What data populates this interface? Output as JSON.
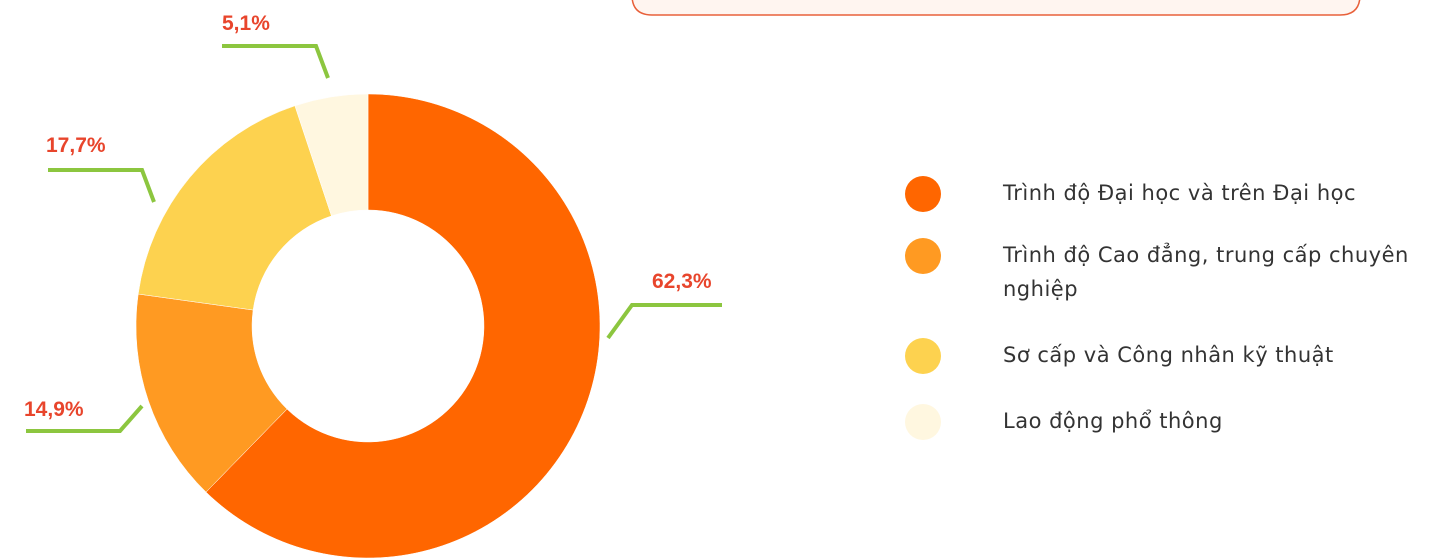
{
  "chart_data": {
    "type": "donut",
    "categories": [
      "Trình độ Đại học và trên Đại học",
      "Trình độ Cao đẳng, trung cấp chuyên nghiệp",
      "Sơ cấp và Công nhân kỹ thuật",
      "Lao động phổ thông"
    ],
    "values": [
      62.3,
      14.9,
      17.7,
      5.1
    ],
    "value_labels": [
      "62,3%",
      "14,9%",
      "17,7%",
      "5,1%"
    ],
    "colors": [
      "#ff6600",
      "#ff9a22",
      "#fdd24f",
      "#fff7e0"
    ],
    "legend": "right"
  }
}
